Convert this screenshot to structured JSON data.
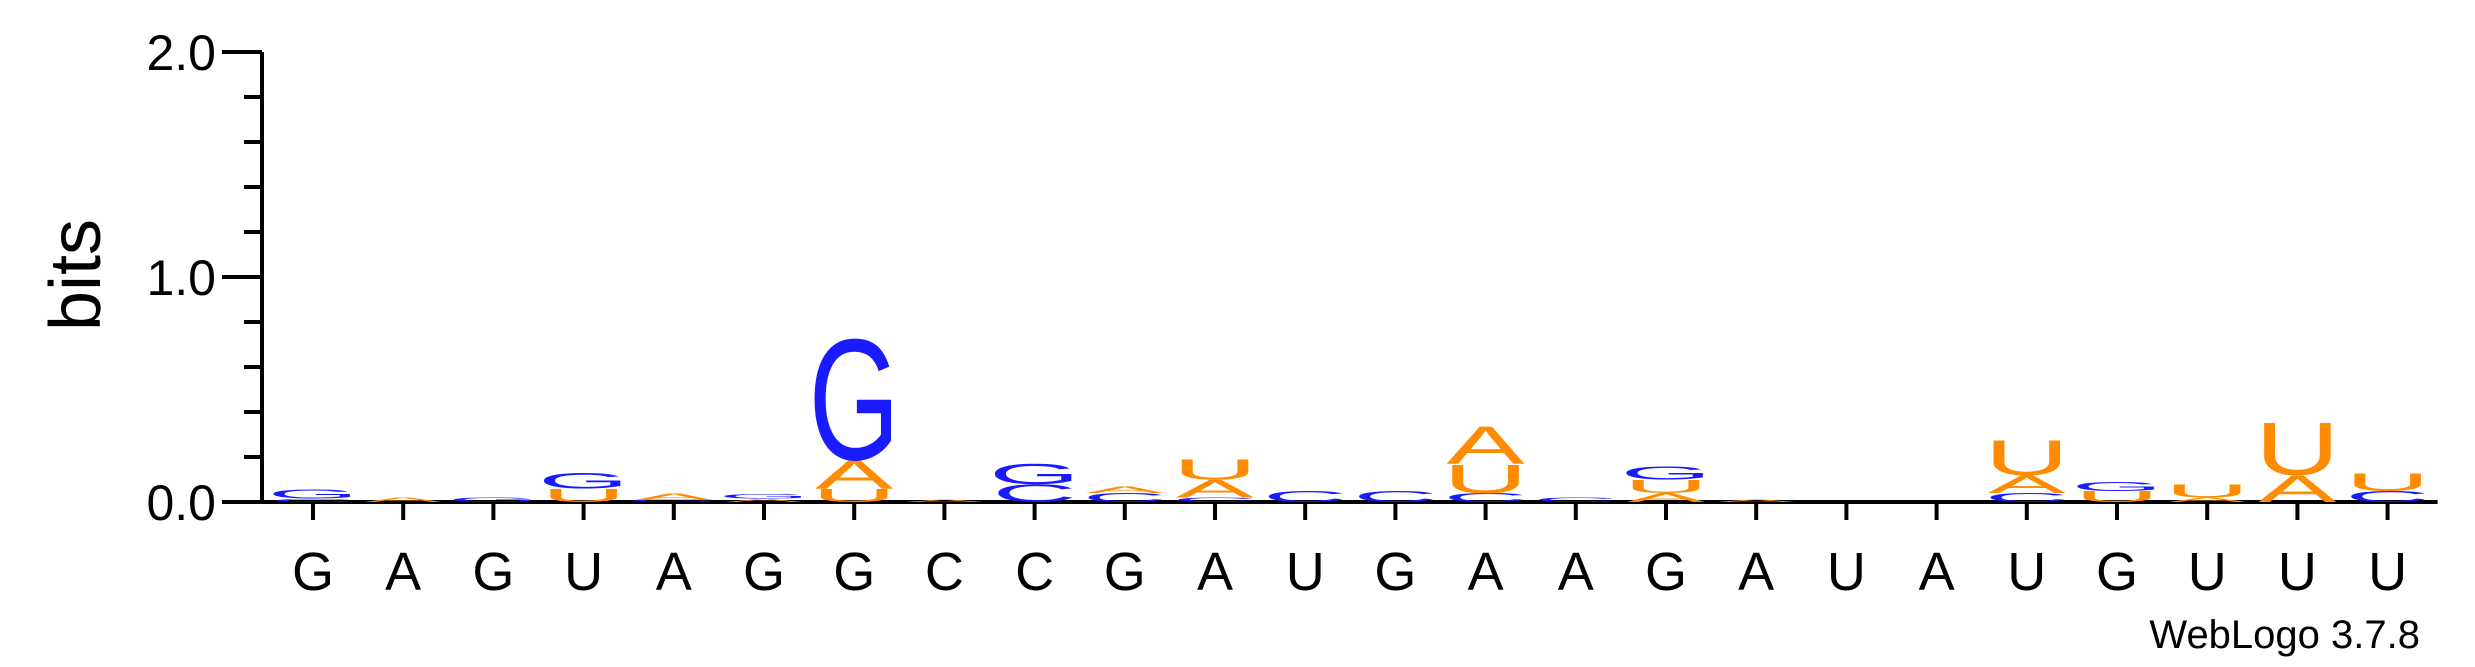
{
  "chart_data": {
    "type": "sequence-logo",
    "title": "",
    "ylabel": "bits",
    "xlabel": "",
    "ylim": [
      0,
      2.0
    ],
    "yticks": [
      "0.0",
      "1.0",
      "2.0"
    ],
    "credit": "WebLogo 3.7.8",
    "colors": {
      "G": "#1a1aff",
      "C": "#1a1aff",
      "A": "#ff8c00",
      "U": "#ff8c00"
    },
    "positions": [
      {
        "label": "G",
        "stack": [
          {
            "letter": "C",
            "bits": 0.015
          },
          {
            "letter": "G",
            "bits": 0.04
          }
        ]
      },
      {
        "label": "A",
        "stack": [
          {
            "letter": "A",
            "bits": 0.02
          }
        ]
      },
      {
        "label": "G",
        "stack": [
          {
            "letter": "G",
            "bits": 0.02
          }
        ]
      },
      {
        "label": "U",
        "stack": [
          {
            "letter": "U",
            "bits": 0.06
          },
          {
            "letter": "G",
            "bits": 0.07
          }
        ]
      },
      {
        "label": "A",
        "stack": [
          {
            "letter": "G",
            "bits": 0.01
          },
          {
            "letter": "A",
            "bits": 0.03
          }
        ]
      },
      {
        "label": "G",
        "stack": [
          {
            "letter": "A",
            "bits": 0.015
          },
          {
            "letter": "G",
            "bits": 0.02
          }
        ]
      },
      {
        "label": "G",
        "stack": [
          {
            "letter": "U",
            "bits": 0.06
          },
          {
            "letter": "A",
            "bits": 0.13
          },
          {
            "letter": "G",
            "bits": 0.55
          }
        ]
      },
      {
        "label": "C",
        "stack": [
          {
            "letter": "A",
            "bits": 0.01
          }
        ]
      },
      {
        "label": "C",
        "stack": [
          {
            "letter": "C",
            "bits": 0.08
          },
          {
            "letter": "G",
            "bits": 0.09
          }
        ]
      },
      {
        "label": "G",
        "stack": [
          {
            "letter": "C",
            "bits": 0.04
          },
          {
            "letter": "A",
            "bits": 0.03
          }
        ]
      },
      {
        "label": "A",
        "stack": [
          {
            "letter": "C",
            "bits": 0.02
          },
          {
            "letter": "A",
            "bits": 0.08
          },
          {
            "letter": "U",
            "bits": 0.09
          }
        ]
      },
      {
        "label": "U",
        "stack": [
          {
            "letter": "C",
            "bits": 0.05
          }
        ]
      },
      {
        "label": "G",
        "stack": [
          {
            "letter": "C",
            "bits": 0.05
          }
        ]
      },
      {
        "label": "A",
        "stack": [
          {
            "letter": "C",
            "bits": 0.04
          },
          {
            "letter": "U",
            "bits": 0.13
          },
          {
            "letter": "A",
            "bits": 0.17
          }
        ]
      },
      {
        "label": "A",
        "stack": [
          {
            "letter": "C",
            "bits": 0.02
          }
        ]
      },
      {
        "label": "G",
        "stack": [
          {
            "letter": "A",
            "bits": 0.04
          },
          {
            "letter": "U",
            "bits": 0.06
          },
          {
            "letter": "G",
            "bits": 0.06
          }
        ]
      },
      {
        "label": "A",
        "stack": [
          {
            "letter": "A",
            "bits": 0.01
          }
        ]
      },
      {
        "label": "U",
        "stack": []
      },
      {
        "label": "A",
        "stack": []
      },
      {
        "label": "U",
        "stack": [
          {
            "letter": "C",
            "bits": 0.04
          },
          {
            "letter": "A",
            "bits": 0.08
          },
          {
            "letter": "U",
            "bits": 0.16
          }
        ]
      },
      {
        "label": "G",
        "stack": [
          {
            "letter": "U",
            "bits": 0.05
          },
          {
            "letter": "G",
            "bits": 0.04
          }
        ]
      },
      {
        "label": "U",
        "stack": [
          {
            "letter": "A",
            "bits": 0.02
          },
          {
            "letter": "U",
            "bits": 0.06
          }
        ]
      },
      {
        "label": "U",
        "stack": [
          {
            "letter": "A",
            "bits": 0.12
          },
          {
            "letter": "U",
            "bits": 0.24
          }
        ]
      },
      {
        "label": "U",
        "stack": [
          {
            "letter": "C",
            "bits": 0.05
          },
          {
            "letter": "U",
            "bits": 0.08
          }
        ]
      }
    ]
  }
}
